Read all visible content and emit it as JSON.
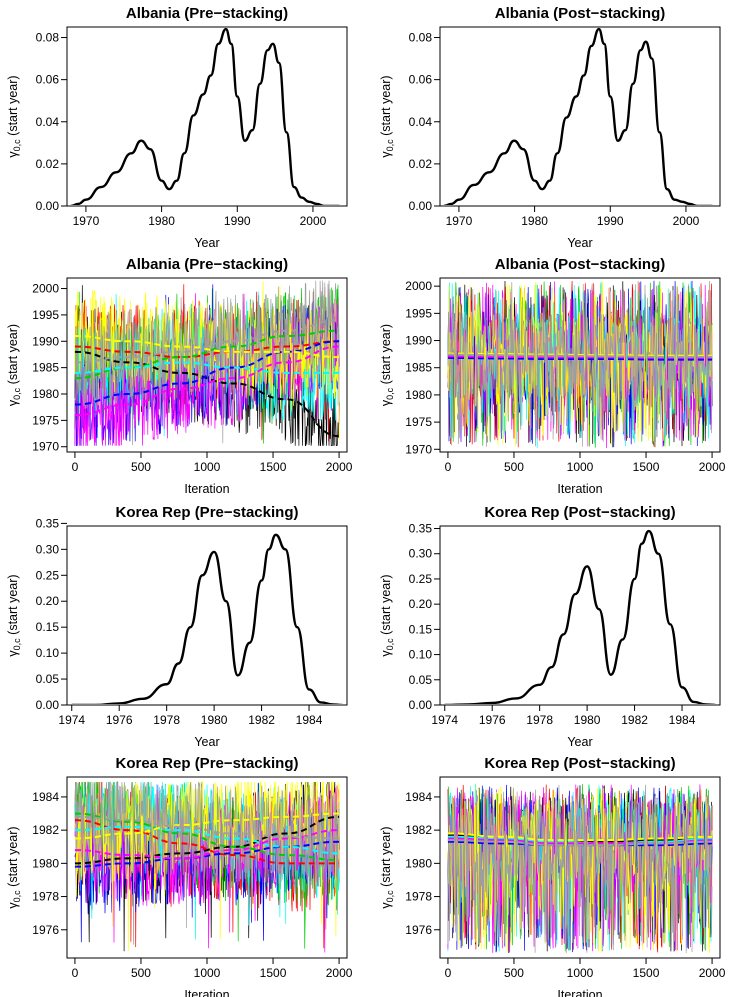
{
  "palette": [
    "#000000",
    "#ff0000",
    "#00cd00",
    "#0000ff",
    "#00ffff",
    "#ff00ff",
    "#ffff00",
    "#9e9e9e"
  ],
  "chart_data": [
    {
      "type": "line",
      "title": "Albania (Pre−stacking)",
      "ylabel": {
        "sym": "γ",
        "sub": "0,c",
        "rest": " (start year)"
      },
      "xlabel": "Year",
      "xlim": [
        1967.5,
        2004.5
      ],
      "ylim": [
        0,
        0.085
      ],
      "xticks": [
        1970,
        1980,
        1990,
        2000
      ],
      "yticks": [
        "0.00",
        "0.02",
        "0.04",
        "0.06",
        "0.08"
      ],
      "series": [
        {
          "x": [
            1968,
            1969,
            1970,
            1972,
            1974,
            1976,
            1977.3,
            1978.5,
            1980,
            1981,
            1982,
            1983,
            1984.2,
            1985.5,
            1986.5,
            1987.5,
            1988.5,
            1989.2,
            1990,
            1991,
            1992,
            1993,
            1994,
            1994.7,
            1995.5,
            1996.5,
            1997.5,
            1998.5,
            1999.5,
            2000.5,
            2001.5,
            2002.5,
            2003.5
          ],
          "y": [
            0.0,
            0.001,
            0.003,
            0.009,
            0.016,
            0.025,
            0.031,
            0.027,
            0.012,
            0.008,
            0.012,
            0.025,
            0.043,
            0.053,
            0.062,
            0.077,
            0.084,
            0.077,
            0.052,
            0.031,
            0.036,
            0.058,
            0.074,
            0.077,
            0.068,
            0.035,
            0.009,
            0.004,
            0.002,
            0.001,
            0.0,
            0.0,
            0.0
          ]
        }
      ]
    },
    {
      "type": "line",
      "title": "Albania (Post−stacking)",
      "ylabel": {
        "sym": "γ",
        "sub": "0,c",
        "rest": " (start year)"
      },
      "xlabel": "Year",
      "xlim": [
        1967.5,
        2004.5
      ],
      "ylim": [
        0,
        0.085
      ],
      "xticks": [
        1970,
        1980,
        1990,
        2000
      ],
      "yticks": [
        "0.00",
        "0.02",
        "0.04",
        "0.06",
        "0.08"
      ],
      "series": [
        {
          "x": [
            1968,
            1969,
            1970,
            1972,
            1974,
            1976,
            1977.3,
            1978.5,
            1980,
            1981,
            1982,
            1983,
            1984.2,
            1985.5,
            1986.5,
            1987.5,
            1988.5,
            1989.2,
            1990,
            1991,
            1992,
            1993,
            1994,
            1994.7,
            1995.5,
            1996.5,
            1997.5,
            1998.5,
            1999.5,
            2000.5,
            2001.5,
            2002.5,
            2003.5
          ],
          "y": [
            0.0,
            0.001,
            0.003,
            0.01,
            0.016,
            0.025,
            0.031,
            0.027,
            0.012,
            0.008,
            0.012,
            0.025,
            0.042,
            0.052,
            0.062,
            0.076,
            0.084,
            0.077,
            0.052,
            0.031,
            0.036,
            0.058,
            0.074,
            0.078,
            0.07,
            0.035,
            0.008,
            0.003,
            0.002,
            0.001,
            0.0,
            0.0,
            0.0
          ]
        }
      ]
    },
    {
      "type": "line",
      "title": "Albania (Pre−stacking)",
      "ylabel": {
        "sym": "γ",
        "sub": "0,c",
        "rest": " (start year)"
      },
      "xlabel": "Iteration",
      "xlim": [
        -60,
        2060
      ],
      "ylim": [
        1969,
        2002
      ],
      "xticks": [
        0,
        500,
        1000,
        1500,
        2000
      ],
      "yticks": [
        "1970",
        "1975",
        "1980",
        "1985",
        "1990",
        "1995",
        "2000"
      ],
      "trace": {
        "iterations": 2000,
        "min": 1970.2,
        "max": 2001.5,
        "spread": 0.55,
        "mixing": "pre"
      },
      "series": [
        {
          "means": [
            1988,
            1986,
            1984,
            1982,
            1979,
            1972
          ]
        },
        {
          "means": [
            1989,
            1988,
            1987,
            1988,
            1989,
            1990
          ]
        },
        {
          "means": [
            1983,
            1985,
            1987,
            1989,
            1991,
            1992
          ]
        },
        {
          "means": [
            1978,
            1980,
            1982,
            1985,
            1988,
            1990
          ]
        },
        {
          "means": [
            1984,
            1985,
            1986,
            1985,
            1984,
            1984
          ]
        },
        {
          "means": [
            1976,
            1978,
            1981,
            1983,
            1986,
            1989
          ]
        },
        {
          "means": [
            1991,
            1990,
            1989,
            1988,
            1988,
            1987
          ]
        },
        {
          "means": [
            1986,
            1987,
            1988,
            1990,
            1992,
            1994
          ]
        }
      ]
    },
    {
      "type": "line",
      "title": "Albania (Post−stacking)",
      "ylabel": {
        "sym": "γ",
        "sub": "0,c",
        "rest": " (start year)"
      },
      "xlabel": "Iteration",
      "xlim": [
        -60,
        2060
      ],
      "ylim": [
        1969.5,
        2001.5
      ],
      "xticks": [
        0,
        500,
        1000,
        1500,
        2000
      ],
      "yticks": [
        "1970",
        "1975",
        "1980",
        "1985",
        "1990",
        "1995",
        "2000"
      ],
      "trace": {
        "iterations": 2000,
        "min": 1970.2,
        "max": 2001,
        "spread": 1.0,
        "mixing": "post"
      },
      "series": [
        {
          "means": [
            1987.5,
            1987.3,
            1987.1,
            1986.9,
            1986.8,
            1986.7
          ]
        },
        {
          "means": [
            1987.2,
            1987.1,
            1987.0,
            1986.9,
            1986.8,
            1986.8
          ]
        },
        {
          "means": [
            1987.0,
            1986.9,
            1986.8,
            1986.7,
            1986.6,
            1986.6
          ]
        },
        {
          "means": [
            1986.8,
            1986.7,
            1986.6,
            1986.6,
            1986.5,
            1986.5
          ]
        },
        {
          "means": [
            1987.3,
            1987.2,
            1987.1,
            1987.0,
            1986.9,
            1986.9
          ]
        },
        {
          "means": [
            1987.1,
            1987.0,
            1986.9,
            1986.9,
            1986.8,
            1986.8
          ]
        },
        {
          "means": [
            1987.6,
            1987.5,
            1987.4,
            1987.3,
            1987.2,
            1987.2
          ]
        },
        {
          "means": [
            1987.4,
            1987.3,
            1987.2,
            1987.1,
            1987.0,
            1987.0
          ]
        }
      ]
    },
    {
      "type": "line",
      "title": "Korea Rep (Pre−stacking)",
      "ylabel": {
        "sym": "γ",
        "sub": "0,c",
        "rest": " (start year)"
      },
      "xlabel": "Year",
      "xlim": [
        1973.8,
        1985.6
      ],
      "ylim": [
        0,
        0.345
      ],
      "xticks": [
        1974,
        1976,
        1978,
        1980,
        1982,
        1984
      ],
      "yticks": [
        "0.00",
        "0.05",
        "0.10",
        "0.15",
        "0.20",
        "0.25",
        "0.30",
        "0.35"
      ],
      "series": [
        {
          "x": [
            1974,
            1975,
            1976,
            1977,
            1978,
            1978.5,
            1979,
            1979.5,
            1980,
            1980.5,
            1981,
            1981.5,
            1982,
            1982.3,
            1982.6,
            1983,
            1983.5,
            1984,
            1984.5,
            1985,
            1985.4
          ],
          "y": [
            0.0,
            0.0,
            0.003,
            0.012,
            0.04,
            0.08,
            0.15,
            0.25,
            0.295,
            0.2,
            0.057,
            0.12,
            0.24,
            0.3,
            0.328,
            0.3,
            0.15,
            0.03,
            0.005,
            0.001,
            0.0
          ]
        }
      ]
    },
    {
      "type": "line",
      "title": "Korea Rep (Post−stacking)",
      "ylabel": {
        "sym": "γ",
        "sub": "0,c",
        "rest": " (start year)"
      },
      "xlabel": "Year",
      "xlim": [
        1973.8,
        1985.6
      ],
      "ylim": [
        0,
        0.355
      ],
      "xticks": [
        1974,
        1976,
        1978,
        1980,
        1982,
        1984
      ],
      "yticks": [
        "0.00",
        "0.05",
        "0.10",
        "0.15",
        "0.20",
        "0.25",
        "0.30",
        "0.35"
      ],
      "series": [
        {
          "x": [
            1974,
            1975,
            1976,
            1977,
            1978,
            1978.5,
            1979,
            1979.5,
            1980,
            1980.5,
            1981,
            1981.5,
            1982,
            1982.3,
            1982.6,
            1983,
            1983.5,
            1984,
            1984.5,
            1985,
            1985.4
          ],
          "y": [
            0.0,
            0.001,
            0.004,
            0.013,
            0.04,
            0.075,
            0.14,
            0.22,
            0.275,
            0.19,
            0.06,
            0.13,
            0.25,
            0.32,
            0.345,
            0.3,
            0.16,
            0.035,
            0.006,
            0.001,
            0.0
          ]
        }
      ]
    },
    {
      "type": "line",
      "title": "Korea Rep (Pre−stacking)",
      "ylabel": {
        "sym": "γ",
        "sub": "0,c",
        "rest": " (start year)"
      },
      "xlabel": "Iteration",
      "xlim": [
        -60,
        2060
      ],
      "ylim": [
        1974.3,
        1985.2
      ],
      "xticks": [
        0,
        500,
        1000,
        1500,
        2000
      ],
      "yticks": [
        "1976",
        "1978",
        "1980",
        "1982",
        "1984"
      ],
      "trace": {
        "iterations": 2000,
        "min": 1974.6,
        "max": 1984.9,
        "spread": 0.55,
        "mixing": "pre"
      },
      "series": [
        {
          "means": [
            1980.0,
            1980.3,
            1980.6,
            1981.0,
            1981.8,
            1982.8
          ]
        },
        {
          "means": [
            1982.6,
            1982.0,
            1981.2,
            1980.5,
            1980.0,
            1980.0
          ]
        },
        {
          "means": [
            1983.0,
            1982.5,
            1981.8,
            1981.0,
            1980.5,
            1980.2
          ]
        },
        {
          "means": [
            1979.8,
            1980.0,
            1980.3,
            1980.6,
            1981.0,
            1981.3
          ]
        },
        {
          "means": [
            1982.0,
            1982.2,
            1982.0,
            1981.5,
            1981.0,
            1980.6
          ]
        },
        {
          "means": [
            1980.8,
            1980.5,
            1980.3,
            1980.8,
            1981.5,
            1982.0
          ]
        },
        {
          "means": [
            1981.5,
            1981.8,
            1982.3,
            1982.6,
            1982.8,
            1983.0
          ]
        },
        {
          "means": [
            1982.8,
            1982.6,
            1982.2,
            1981.8,
            1981.6,
            1981.5
          ]
        }
      ]
    },
    {
      "type": "line",
      "title": "Korea Rep (Post−stacking)",
      "ylabel": {
        "sym": "γ",
        "sub": "0,c",
        "rest": " (start year)"
      },
      "xlabel": "Iteration",
      "xlim": [
        -60,
        2060
      ],
      "ylim": [
        1974.3,
        1985.2
      ],
      "xticks": [
        0,
        500,
        1000,
        1500,
        2000
      ],
      "yticks": [
        "1976",
        "1978",
        "1980",
        "1982",
        "1984"
      ],
      "trace": {
        "iterations": 2000,
        "min": 1974.6,
        "max": 1984.8,
        "spread": 0.95,
        "mixing": "post"
      },
      "series": [
        {
          "means": [
            1981.7,
            1981.5,
            1981.3,
            1981.3,
            1981.4,
            1981.6
          ]
        },
        {
          "means": [
            1981.5,
            1981.4,
            1981.2,
            1981.2,
            1981.3,
            1981.4
          ]
        },
        {
          "means": [
            1981.4,
            1981.3,
            1981.2,
            1981.1,
            1981.2,
            1981.3
          ]
        },
        {
          "means": [
            1981.3,
            1981.2,
            1981.1,
            1981.1,
            1981.1,
            1981.2
          ]
        },
        {
          "means": [
            1981.6,
            1981.5,
            1981.3,
            1981.2,
            1981.3,
            1981.5
          ]
        },
        {
          "means": [
            1981.5,
            1981.4,
            1981.2,
            1981.2,
            1981.2,
            1981.4
          ]
        },
        {
          "means": [
            1981.8,
            1981.6,
            1981.4,
            1981.4,
            1981.5,
            1981.6
          ]
        },
        {
          "means": [
            1981.4,
            1981.3,
            1981.1,
            1981.1,
            1981.2,
            1981.3
          ]
        }
      ]
    }
  ]
}
